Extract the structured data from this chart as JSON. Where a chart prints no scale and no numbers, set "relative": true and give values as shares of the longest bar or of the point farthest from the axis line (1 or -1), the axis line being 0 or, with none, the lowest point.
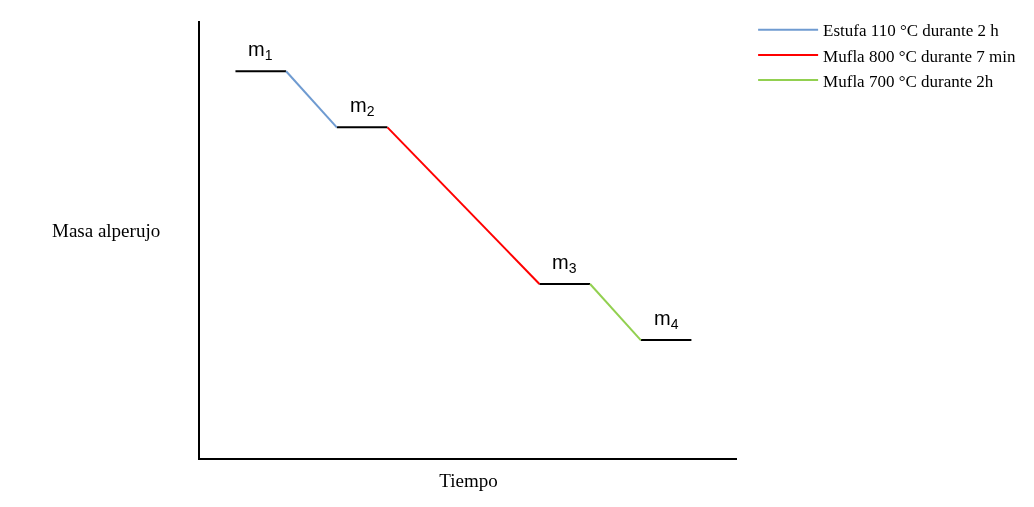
{
  "chart_data": {
    "type": "line",
    "relative": true,
    "xlabel": "Tiempo",
    "ylabel": "Masa alperujo",
    "tick_labels": false,
    "legend": "top right",
    "categories": [
      null,
      null,
      null,
      null,
      null,
      null,
      null,
      null,
      null,
      null
    ],
    "series": [
      {
        "color": "#000000",
        "values": [
          1,
          1,
          null,
          null,
          null,
          null,
          null,
          null,
          null,
          null
        ]
      },
      {
        "color": "#000000",
        "values": [
          null,
          null,
          0.855,
          0.855,
          null,
          null,
          null,
          null,
          null,
          null
        ]
      },
      {
        "color": "#000000",
        "values": [
          null,
          null,
          null,
          null,
          null,
          null,
          0.45,
          0.45,
          null,
          null
        ]
      },
      {
        "color": "#000000",
        "values": [
          null,
          null,
          null,
          null,
          null,
          null,
          null,
          null,
          0.305,
          0.305
        ]
      },
      {
        "name": "Estufa 110 °C durante 2 h",
        "color": "#6f9bd1",
        "values": [
          null,
          1,
          0.855,
          null,
          null,
          null,
          null,
          null,
          null,
          null
        ]
      },
      {
        "name": "Mufla 800 °C durante 7 min",
        "color": "#ff0000",
        "values": [
          null,
          null,
          null,
          0.855,
          null,
          null,
          0.45,
          null,
          null,
          null
        ]
      },
      {
        "name": "Mufla 700 °C durante 2h",
        "color": "#92d050",
        "values": [
          null,
          null,
          null,
          null,
          null,
          null,
          null,
          0.45,
          0.305,
          null
        ]
      }
    ],
    "annotations": [
      {
        "text": "m$_{1}$",
        "y": 1
      },
      {
        "text": "m$_{2}$",
        "y": 0.855
      },
      {
        "text": "m$_{3}$",
        "y": 0.45
      },
      {
        "text": "m$_{4}$",
        "y": 0.305
      }
    ]
  }
}
